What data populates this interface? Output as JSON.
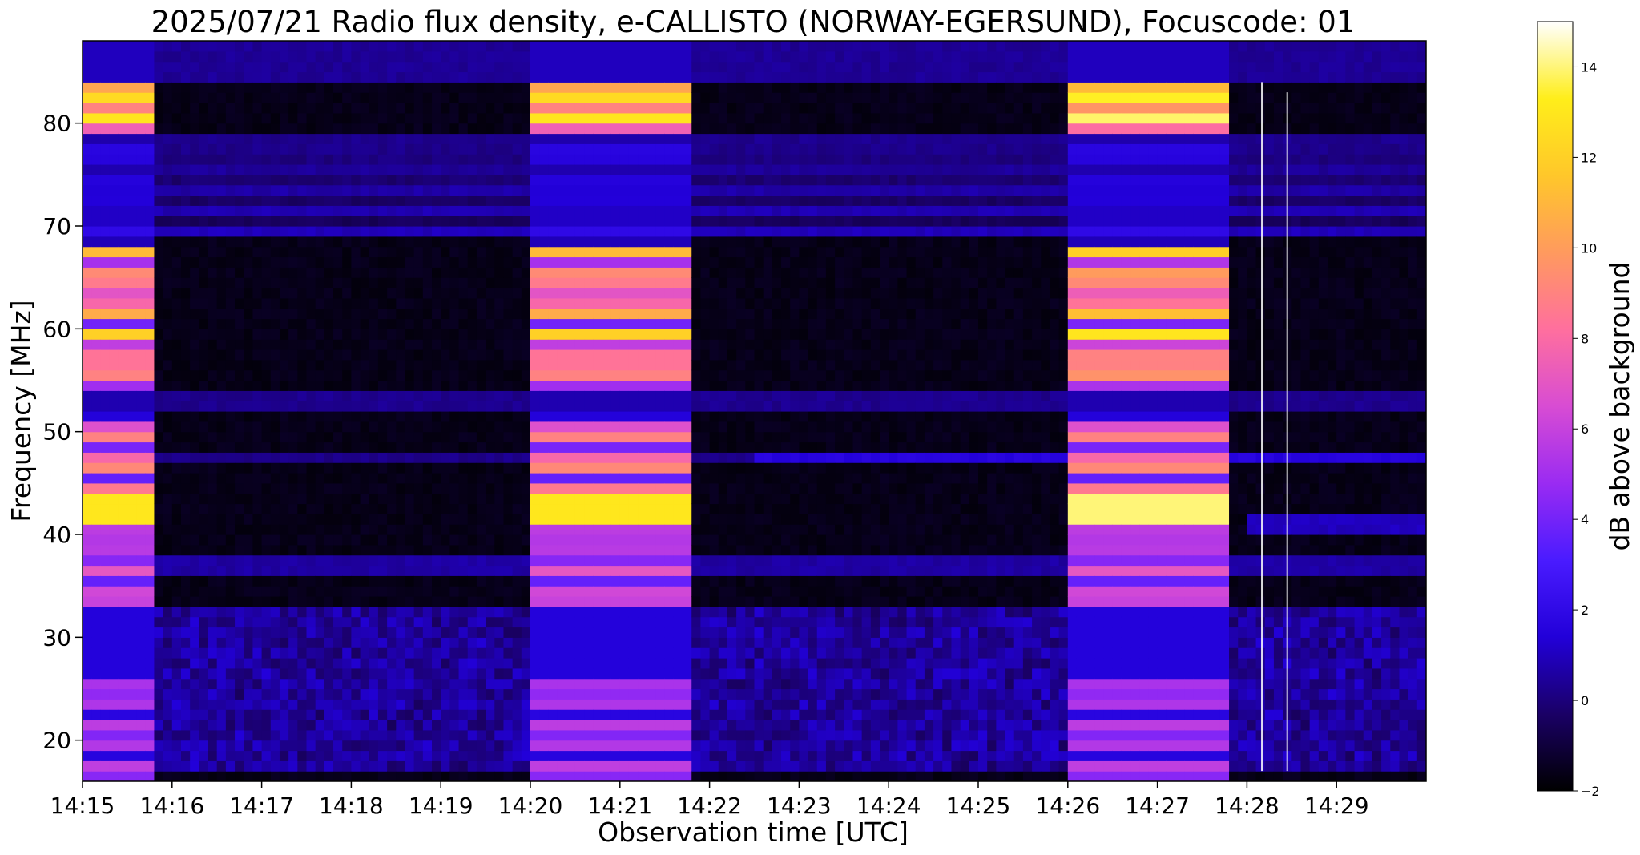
{
  "chart_data": {
    "type": "heatmap",
    "title": "2025/07/21  Radio flux density, e-CALLISTO (NORWAY-EGERSUND), Focuscode: 01",
    "xlabel": "Observation time [UTC]",
    "ylabel": "Frequency [MHz]",
    "x_tick_labels": [
      "14:15",
      "14:16",
      "14:17",
      "14:18",
      "14:19",
      "14:20",
      "14:21",
      "14:22",
      "14:23",
      "14:24",
      "14:25",
      "14:26",
      "14:27",
      "14:28",
      "14:29"
    ],
    "xlim": [
      "14:15:00",
      "14:30:00"
    ],
    "y_ticks": [
      20,
      30,
      40,
      50,
      60,
      70,
      80
    ],
    "ylim": [
      16,
      88
    ],
    "colorbar": {
      "label": "dB above background",
      "ticks": [
        -2,
        0,
        2,
        4,
        6,
        8,
        10,
        12,
        14
      ],
      "range": [
        -2,
        15
      ],
      "colormap": "gnuplot2",
      "colors": [
        "#000000",
        "#1a0066",
        "#2200d9",
        "#4a1bff",
        "#9a2bf2",
        "#d84cd3",
        "#ff6f9e",
        "#ff9a5e",
        "#ffc72a",
        "#ffee1a",
        "#ffffff"
      ]
    },
    "bright_intervals": [
      {
        "start": "14:15:00",
        "end": "14:15:48",
        "level_db": 13
      },
      {
        "start": "14:20:00",
        "end": "14:21:50",
        "level_db": 13
      },
      {
        "start": "14:26:00",
        "end": "14:27:50",
        "level_db": 14
      }
    ],
    "spikes": [
      {
        "time": "14:28:10",
        "fmin": 17,
        "fmax": 84
      },
      {
        "time": "14:28:27",
        "fmin": 17,
        "fmax": 83
      }
    ]
  }
}
